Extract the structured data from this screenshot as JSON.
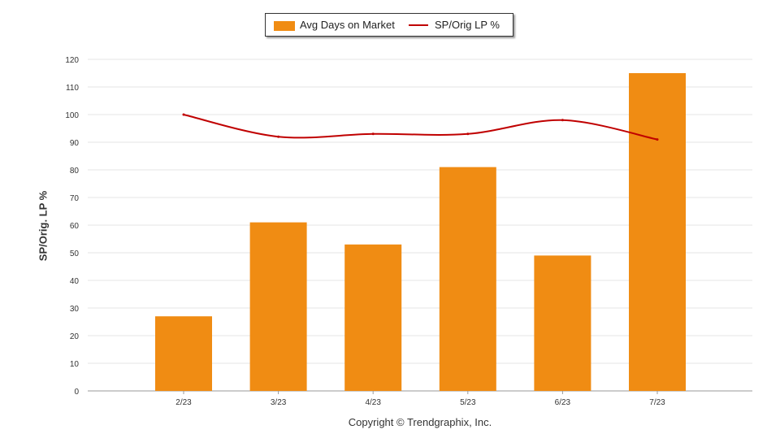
{
  "legend": {
    "bar_label": "Avg Days on Market",
    "line_label": "SP/Orig LP %"
  },
  "copyright": "Copyright © Trendgraphix, Inc.",
  "colors": {
    "bar": "#F08C13",
    "line": "#C00000",
    "grid": "#E6E6E6",
    "axis": "#999999"
  },
  "chart_data": {
    "type": "bar",
    "categories": [
      "2/23",
      "3/23",
      "4/23",
      "5/23",
      "6/23",
      "7/23"
    ],
    "series": [
      {
        "name": "Avg Days on Market",
        "type": "bar",
        "values": [
          27,
          61,
          53,
          81,
          49,
          115
        ]
      },
      {
        "name": "SP/Orig LP %",
        "type": "line",
        "values": [
          100,
          92,
          93,
          93,
          98,
          91
        ]
      }
    ],
    "ylabel": "SP/Orig. LP %",
    "yticks": [
      "0",
      "10",
      "20",
      "30",
      "40",
      "50",
      "60",
      "70",
      "80",
      "90",
      "100",
      "110",
      "120"
    ],
    "ylim": [
      0,
      120
    ],
    "grid": true,
    "legend_position": "top-center"
  }
}
